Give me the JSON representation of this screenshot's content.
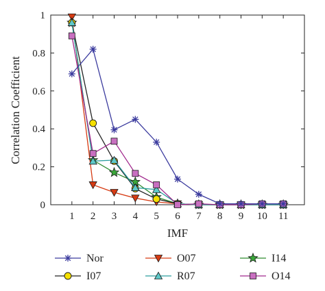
{
  "chart_data": {
    "type": "line",
    "xlabel": "IMF",
    "ylabel": "Correlation Coefficient",
    "xlim": [
      0,
      12
    ],
    "ylim": [
      0,
      1
    ],
    "x": [
      1,
      2,
      3,
      4,
      5,
      6,
      7,
      8,
      9,
      10,
      11
    ],
    "x_ticks": [
      "1",
      "2",
      "3",
      "4",
      "5",
      "6",
      "7",
      "8",
      "9",
      "10",
      "11"
    ],
    "y_ticks": [
      {
        "value": 0,
        "label": "0"
      },
      {
        "value": 0.2,
        "label": "0.2"
      },
      {
        "value": 0.4,
        "label": "0.4"
      },
      {
        "value": 0.6,
        "label": "0.6"
      },
      {
        "value": 0.8,
        "label": "0.8"
      },
      {
        "value": 1,
        "label": "1"
      }
    ],
    "grid": false,
    "legend_position": "bottom",
    "series": [
      {
        "name": "Nor",
        "color": "#3b3b9e",
        "marker": "asterisk",
        "values": [
          0.69,
          0.82,
          0.395,
          0.45,
          0.33,
          0.135,
          0.055,
          0.005,
          0.005,
          0.005,
          0.005
        ]
      },
      {
        "name": "O07",
        "color": "#d63a12",
        "marker": "triangle-down",
        "values": [
          0.99,
          0.105,
          0.065,
          0.035,
          0.015,
          0.005,
          0.0,
          0.0,
          0.0,
          0.0,
          0.0
        ]
      },
      {
        "name": "I14",
        "color": "#2e8b2e",
        "marker": "star",
        "values": [
          0.96,
          0.235,
          0.17,
          0.12,
          0.04,
          0.005,
          0.0,
          0.0,
          0.0,
          0.0,
          0.0
        ]
      },
      {
        "name": "I07",
        "color": "#222222",
        "marker": "circle",
        "values": [
          0.96,
          0.43,
          0.23,
          0.085,
          0.03,
          0.005,
          0.0,
          0.0,
          0.0,
          0.0,
          0.0
        ]
      },
      {
        "name": "R07",
        "color": "#2a9d9d",
        "marker": "triangle-up",
        "values": [
          0.96,
          0.23,
          0.235,
          0.09,
          0.08,
          0.005,
          0.0,
          0.0,
          0.0,
          0.0,
          0.0
        ]
      },
      {
        "name": "O14",
        "color": "#a0288c",
        "marker": "square",
        "values": [
          0.89,
          0.27,
          0.335,
          0.165,
          0.105,
          0.0,
          0.005,
          0.0,
          0.0,
          0.005,
          0.005
        ]
      }
    ]
  }
}
